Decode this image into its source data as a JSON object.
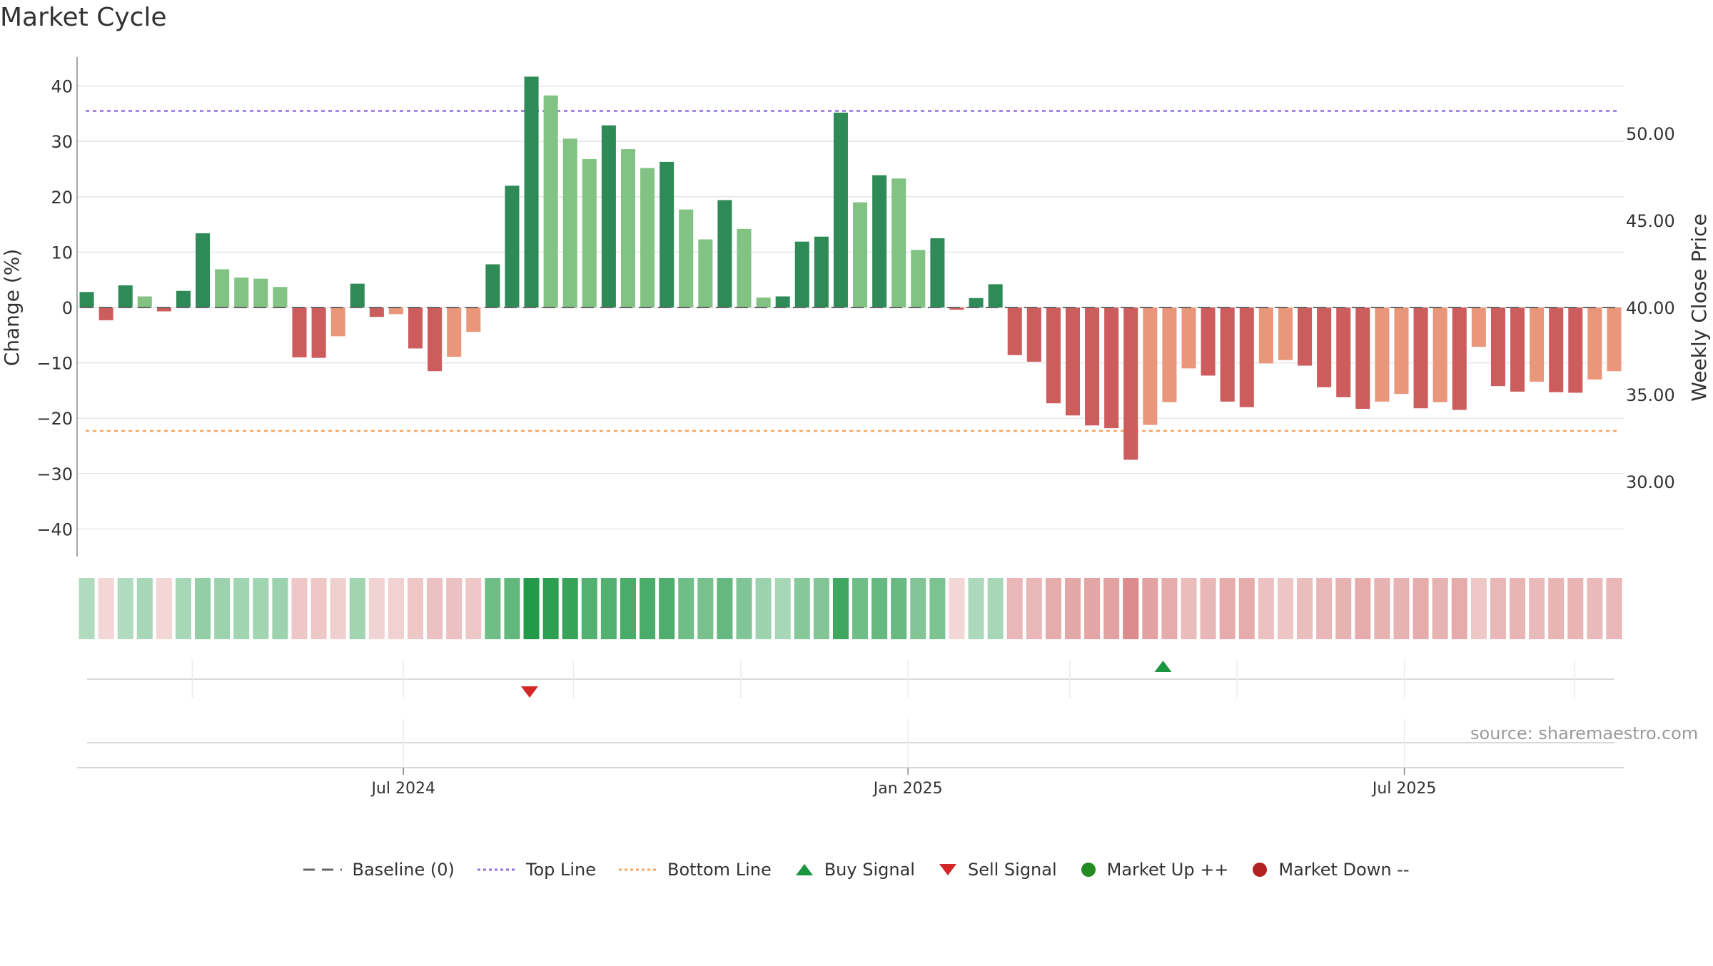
{
  "chart_data": {
    "type": "bar",
    "title": "Market Cycle",
    "source": "source: sharemaestro.com",
    "y_left_label": "Change (%)",
    "y_right_label": "Weekly Close Price",
    "y_left_ticks": [
      "40",
      "30",
      "20",
      "10",
      "0",
      "−10",
      "−20",
      "−30",
      "−40"
    ],
    "y_left_tick_values": [
      40,
      30,
      20,
      10,
      0,
      -10,
      -20,
      -30,
      -40
    ],
    "y_right_ticks": [
      "50.00",
      "45.00",
      "40.00",
      "35.00",
      "30.00"
    ],
    "y_right_tick_values": [
      50,
      45,
      40,
      35,
      30
    ],
    "ylim_left": [
      -45,
      45
    ],
    "ylim_right": [
      27.5,
      53.5
    ],
    "x_tick_labels": [
      "Jul 2024",
      "Jan 2025",
      "Jul 2025"
    ],
    "x_tick_dates": [
      "2024-07-01",
      "2025-01-01",
      "2025-07-01"
    ],
    "x_range": [
      "2024-03-04",
      "2025-09-19"
    ],
    "top_line": 35.5,
    "bottom_line": -22.3,
    "baseline": 0,
    "week_dates": [
      "2024-03-08",
      "2024-03-15",
      "2024-03-22",
      "2024-03-29",
      "2024-04-05",
      "2024-04-12",
      "2024-04-19",
      "2024-04-26",
      "2024-05-03",
      "2024-05-10",
      "2024-05-17",
      "2024-05-24",
      "2024-05-31",
      "2024-06-07",
      "2024-06-14",
      "2024-06-21",
      "2024-06-28",
      "2024-07-05",
      "2024-07-12",
      "2024-07-19",
      "2024-07-26",
      "2024-08-02",
      "2024-08-09",
      "2024-08-16",
      "2024-08-23",
      "2024-08-30",
      "2024-09-06",
      "2024-09-13",
      "2024-09-20",
      "2024-09-27",
      "2024-10-04",
      "2024-10-11",
      "2024-10-18",
      "2024-10-25",
      "2024-11-01",
      "2024-11-08",
      "2024-11-15",
      "2024-11-22",
      "2024-11-29",
      "2024-12-06",
      "2024-12-13",
      "2024-12-20",
      "2024-12-27",
      "2025-01-03",
      "2025-01-10",
      "2025-01-17",
      "2025-01-24",
      "2025-01-31",
      "2025-02-07",
      "2025-02-14",
      "2025-02-21",
      "2025-02-28",
      "2025-03-07",
      "2025-03-14",
      "2025-03-21",
      "2025-03-28",
      "2025-04-04",
      "2025-04-11",
      "2025-04-18",
      "2025-04-25",
      "2025-05-02",
      "2025-05-09",
      "2025-05-16",
      "2025-05-23",
      "2025-05-30",
      "2025-06-06",
      "2025-06-13",
      "2025-06-20",
      "2025-06-27",
      "2025-07-04",
      "2025-07-11",
      "2025-07-18",
      "2025-07-25",
      "2025-08-01",
      "2025-08-08",
      "2025-08-15",
      "2025-08-22",
      "2025-08-29",
      "2025-09-05",
      "2025-09-12"
    ],
    "values": [
      2.8,
      -2.3,
      4,
      2,
      -0.7,
      3,
      13.4,
      6.9,
      5.4,
      5.2,
      3.7,
      -9,
      -9.1,
      -5.2,
      4.3,
      -1.7,
      -1.2,
      -7.4,
      -11.5,
      -8.9,
      -4.4,
      7.8,
      22,
      41.7,
      38.3,
      30.5,
      26.8,
      32.9,
      28.6,
      25.2,
      26.3,
      17.7,
      12.3,
      19.4,
      14.2,
      1.8,
      2,
      11.9,
      12.8,
      35.2,
      19,
      23.9,
      23.3,
      10.4,
      12.5,
      -0.4,
      1.7,
      4.2,
      -8.6,
      -9.8,
      -17.3,
      -19.5,
      -21.3,
      -21.8,
      -27.5,
      -21.2,
      -17.1,
      -11,
      -12.3,
      -17,
      -18,
      -10.1,
      -9.5,
      -10.5,
      -14.4,
      -16.2,
      -18.3,
      -17,
      -15.6,
      -18.2,
      -17.1,
      -18.5,
      -7.1,
      -14.2,
      -15.2,
      -13.4,
      -15.3,
      -15.4,
      -13,
      -11.5
    ],
    "bar_styles": [
      "D",
      "D",
      "D",
      "L",
      "D",
      "D",
      "D",
      "L",
      "L",
      "L",
      "L",
      "D",
      "D",
      "L",
      "D",
      "D",
      "L",
      "D",
      "D",
      "L",
      "L",
      "D",
      "D",
      "D",
      "L",
      "L",
      "L",
      "D",
      "L",
      "L",
      "D",
      "L",
      "L",
      "D",
      "L",
      "L",
      "D",
      "D",
      "D",
      "D",
      "L",
      "D",
      "L",
      "L",
      "D",
      "D",
      "D",
      "D",
      "D",
      "D",
      "D",
      "D",
      "D",
      "D",
      "D",
      "L",
      "L",
      "L",
      "D",
      "D",
      "D",
      "L",
      "L",
      "D",
      "D",
      "D",
      "D",
      "L",
      "L",
      "D",
      "L",
      "D",
      "L",
      "D",
      "D",
      "L",
      "D",
      "D",
      "L",
      "L"
    ],
    "heat_levels": [
      0.2,
      0.15,
      0.2,
      0.25,
      0.15,
      0.25,
      0.35,
      0.3,
      0.28,
      0.28,
      0.3,
      0.3,
      0.3,
      0.22,
      0.28,
      0.18,
      0.2,
      0.3,
      0.35,
      0.35,
      0.3,
      0.55,
      0.62,
      0.95,
      0.9,
      0.85,
      0.7,
      0.7,
      0.75,
      0.75,
      0.72,
      0.55,
      0.5,
      0.6,
      0.45,
      0.3,
      0.25,
      0.42,
      0.45,
      0.8,
      0.55,
      0.6,
      0.58,
      0.45,
      0.48,
      0.15,
      0.22,
      0.25,
      0.45,
      0.45,
      0.55,
      0.6,
      0.62,
      0.65,
      0.85,
      0.65,
      0.55,
      0.4,
      0.45,
      0.55,
      0.55,
      0.35,
      0.32,
      0.38,
      0.45,
      0.5,
      0.55,
      0.5,
      0.5,
      0.55,
      0.5,
      0.55,
      0.3,
      0.45,
      0.48,
      0.42,
      0.48,
      0.48,
      0.42,
      0.45
    ],
    "signals": [
      {
        "type": "sell",
        "date": "2024-08-16"
      },
      {
        "type": "buy",
        "date": "2025-04-04"
      }
    ],
    "legend": [
      "Baseline (0)",
      "Top Line",
      "Bottom Line",
      "Buy Signal",
      "Sell Signal",
      "Market Up ++",
      "Market Down --"
    ],
    "colors": {
      "up_dark": "#2e8b57",
      "up_light": "#82c282",
      "down_dark": "#cd5c5c",
      "down_light": "#e9967a",
      "top_line": "#9370db",
      "bottom_line": "#f4a460",
      "buy": "#1a9641",
      "sell": "#d62728",
      "market_up": "#228b22",
      "market_down": "#b22222",
      "baseline": "#666666"
    },
    "grid": true,
    "legend_position": "bottom"
  }
}
